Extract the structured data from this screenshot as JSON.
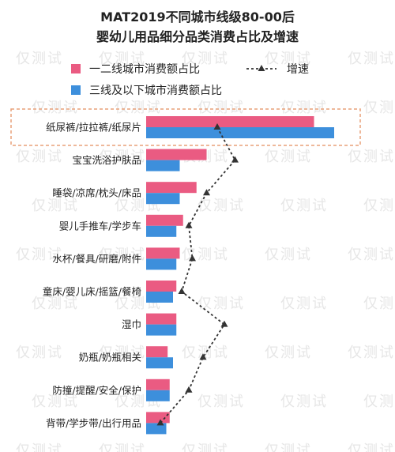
{
  "chart_data": {
    "type": "bar",
    "title": [
      "MAT2019不同城市线级80-00后",
      "婴幼儿用品细分品类消费占比及增速"
    ],
    "categories": [
      "纸尿裤/拉拉裤/纸尿片",
      "宝宝洗浴护肤品",
      "睡袋/凉席/枕头/床品",
      "婴儿手推车/学步车",
      "水杯/餐具/研磨/附件",
      "童床/婴儿床/摇篮/餐椅",
      "湿巾",
      "奶瓶/奶瓶相关",
      "防撞/提醒/安全/保护",
      "背带/学步带/出行用品"
    ],
    "series": [
      {
        "name": "一二线城市消费额占比",
        "color": "#ea5b82",
        "values": [
          25.0,
          9.0,
          7.5,
          5.5,
          5.0,
          4.5,
          4.5,
          3.2,
          3.5,
          3.5
        ]
      },
      {
        "name": "三线及以下城市消费额占比",
        "color": "#3d8fdc",
        "values": [
          28.0,
          5.0,
          5.0,
          4.5,
          4.5,
          4.0,
          4.5,
          4.0,
          3.5,
          3.0
        ]
      },
      {
        "name": "增速",
        "color": "#333333",
        "values": [
          10.0,
          12.5,
          8.5,
          6.0,
          6.5,
          5.0,
          11.0,
          8.0,
          6.0,
          2.0
        ]
      }
    ],
    "xlim": [
      0,
      30
    ],
    "grid": false,
    "legend": "top",
    "highlight_category": "纸尿裤/拉拉裤/纸尿片"
  },
  "watermark": "仅测试"
}
